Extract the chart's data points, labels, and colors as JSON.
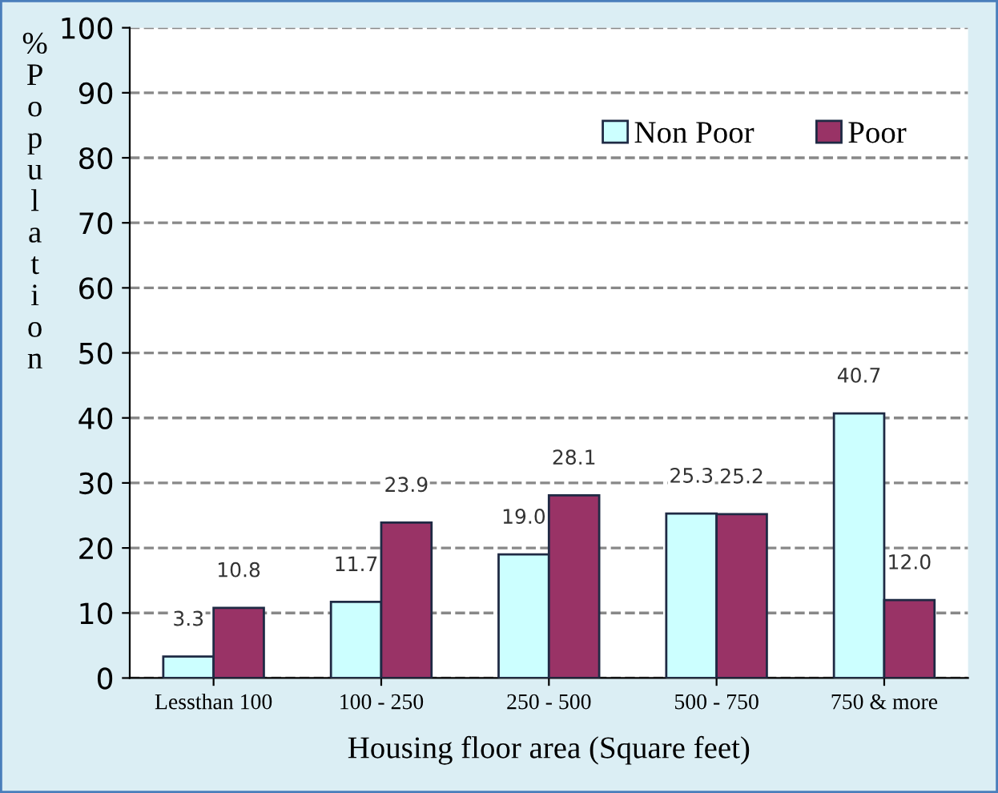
{
  "chart_data": {
    "type": "bar",
    "xlabel": "Housing floor area (Square feet)",
    "ylabel": "% Population",
    "categories": [
      "Lessthan 100",
      "100 - 250",
      "250 - 500",
      "500 - 750",
      "750 & more"
    ],
    "series": [
      {
        "name": "Non Poor",
        "color": "#ccffff",
        "values": [
          3.3,
          11.7,
          19.0,
          25.3,
          40.7
        ],
        "value_labels": [
          "3.3",
          "11.7",
          "19.0",
          "25.3",
          "40.7"
        ]
      },
      {
        "name": "Poor",
        "color": "#993366",
        "values": [
          10.8,
          23.9,
          28.1,
          25.2,
          12.0
        ],
        "value_labels": [
          "10.8",
          "23.9",
          "28.1",
          "25.2",
          "12.0"
        ]
      }
    ],
    "ylim": [
      0,
      100
    ],
    "yticks": [
      0,
      10,
      20,
      30,
      40,
      50,
      60,
      70,
      80,
      90,
      100
    ],
    "grid": "y",
    "legend": "top right"
  }
}
